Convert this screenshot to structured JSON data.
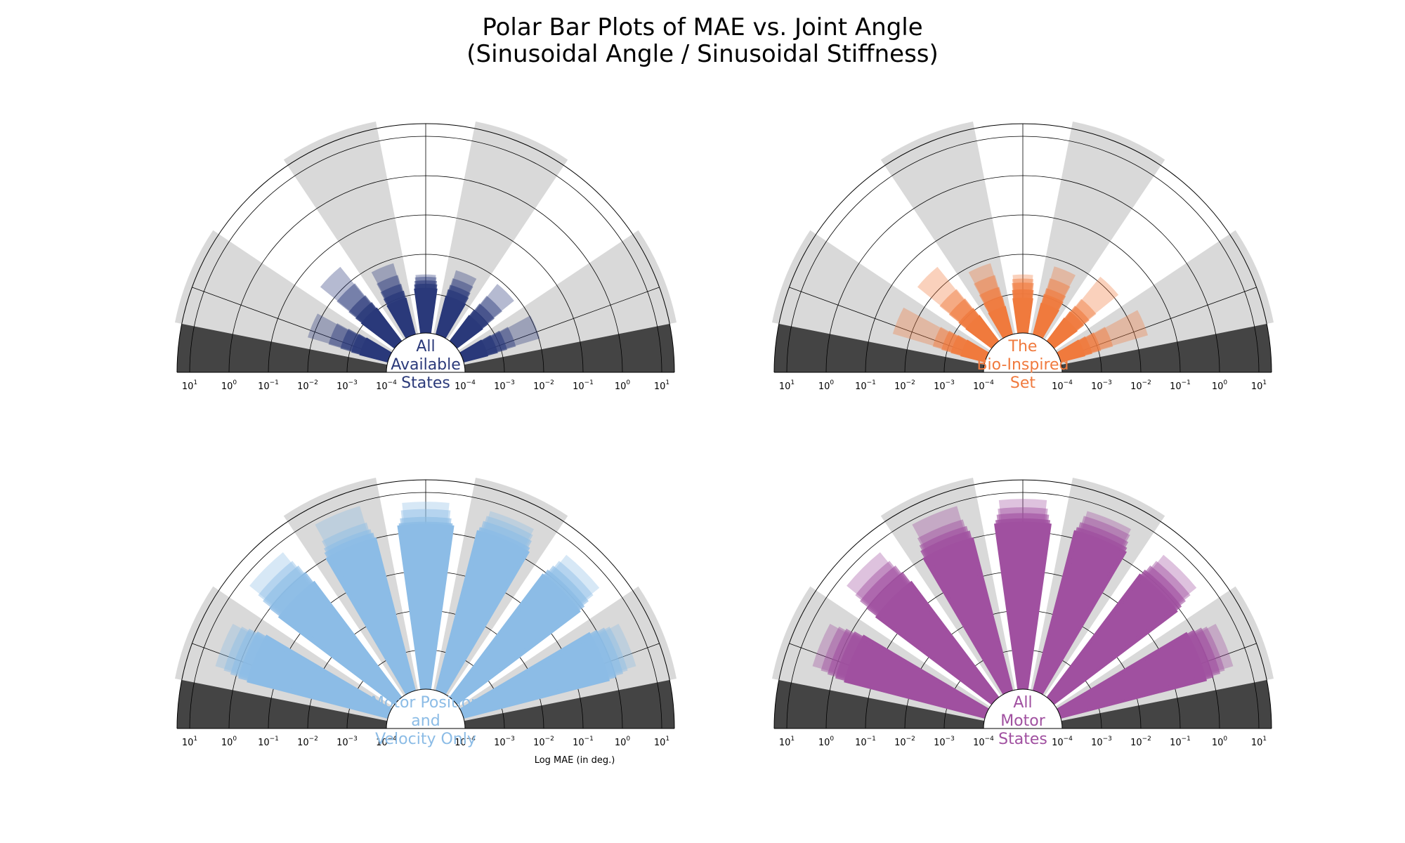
{
  "figure": {
    "title_lines": [
      "Polar Bar Plots of MAE vs. Joint Angle",
      "(Sinusoidal Angle / Sinusoidal Stiffness)"
    ],
    "xlabel": "Log MAE (in deg.)"
  },
  "chart_data": [
    {
      "type": "bar",
      "subtype": "polar-bar-semicircle",
      "name_lines": [
        "All",
        "Available",
        "States"
      ],
      "color": "#2b3a7a",
      "radial_scale": "log",
      "rlim": [
        0.0001,
        10
      ],
      "radial_tick_labels": [
        "10^1",
        "10^0",
        "10^-1",
        "10^-2",
        "10^-3",
        "10^-4",
        "10^-4",
        "10^-3",
        "10^-2",
        "10^-1",
        "10^0",
        "10^1"
      ],
      "joint_angle_bins_deg": [
        -67.5,
        -45,
        -22.5,
        0,
        22.5,
        45,
        67.5
      ],
      "series_alphas": [
        1.0,
        0.8,
        0.6,
        0.45,
        0.35
      ],
      "values": [
        [
          0.0005,
          0.001,
          0.0008,
          0.0012,
          0.0009,
          0.0006,
          0.0004
        ],
        [
          0.0008,
          0.0015,
          0.0012,
          0.0015,
          0.0013,
          0.0009,
          0.0007
        ],
        [
          0.0015,
          0.0025,
          0.0018,
          0.0018,
          0.0017,
          0.0014,
          0.0012
        ],
        [
          0.003,
          0.006,
          0.003,
          0.0022,
          0.0025,
          0.0025,
          0.002
        ],
        [
          0.01,
          0.02,
          0.006,
          0.0025,
          0.004,
          0.006,
          0.008
        ]
      ]
    },
    {
      "type": "bar",
      "subtype": "polar-bar-semicircle",
      "name_lines": [
        "The",
        "Bio-Inspired",
        "Set"
      ],
      "color": "#f07a3e",
      "radial_scale": "log",
      "rlim": [
        0.0001,
        10
      ],
      "radial_tick_labels": [
        "10^1",
        "10^0",
        "10^-1",
        "10^-2",
        "10^-3",
        "10^-4",
        "10^-4",
        "10^-3",
        "10^-2",
        "10^-1",
        "10^0",
        "10^1"
      ],
      "joint_angle_bins_deg": [
        -67.5,
        -45,
        -22.5,
        0,
        22.5,
        45,
        67.5
      ],
      "series_alphas": [
        1.0,
        0.8,
        0.6,
        0.45,
        0.35
      ],
      "values": [
        [
          0.0004,
          0.0006,
          0.0005,
          0.0007,
          0.0006,
          0.0005,
          0.0004
        ],
        [
          0.0007,
          0.001,
          0.0009,
          0.0011,
          0.001,
          0.0008,
          0.0006
        ],
        [
          0.0012,
          0.002,
          0.0015,
          0.0016,
          0.0014,
          0.0012,
          0.001
        ],
        [
          0.002,
          0.004,
          0.003,
          0.002,
          0.0025,
          0.002,
          0.002
        ],
        [
          0.02,
          0.02,
          0.006,
          0.0025,
          0.005,
          0.01,
          0.015
        ]
      ]
    },
    {
      "type": "bar",
      "subtype": "polar-bar-semicircle",
      "name_lines": [
        "Motor Position",
        "and",
        "Velocity Only"
      ],
      "color": "#8cbce6",
      "radial_scale": "log",
      "rlim": [
        0.0001,
        10
      ],
      "radial_tick_labels": [
        "10^1",
        "10^0",
        "10^-1",
        "10^-2",
        "10^-3",
        "10^-4",
        "10^-4",
        "10^-3",
        "10^-2",
        "10^-1",
        "10^0",
        "10^1"
      ],
      "joint_angle_bins_deg": [
        -67.5,
        -45,
        -22.5,
        0,
        22.5,
        45,
        67.5
      ],
      "series_alphas": [
        1.0,
        0.8,
        0.6,
        0.45,
        0.35
      ],
      "values": [
        [
          0.3,
          0.3,
          0.6,
          0.9,
          0.9,
          0.5,
          0.4
        ],
        [
          0.5,
          0.6,
          0.8,
          1.0,
          1.1,
          0.7,
          0.6
        ],
        [
          0.8,
          1.0,
          1.0,
          1.3,
          1.6,
          1.0,
          0.9
        ],
        [
          1.2,
          1.5,
          1.5,
          2.0,
          2.2,
          1.5,
          1.2
        ],
        [
          2.0,
          3.0,
          4.0,
          3.0,
          3.0,
          2.5,
          2.0
        ]
      ]
    },
    {
      "type": "bar",
      "subtype": "polar-bar-semicircle",
      "name_lines": [
        "All",
        "Motor",
        "States"
      ],
      "color": "#a050a0",
      "radial_scale": "log",
      "rlim": [
        0.0001,
        10
      ],
      "radial_tick_labels": [
        "10^1",
        "10^0",
        "10^-1",
        "10^-2",
        "10^-3",
        "10^-4",
        "10^-4",
        "10^-3",
        "10^-2",
        "10^-1",
        "10^0",
        "10^1"
      ],
      "joint_angle_bins_deg": [
        -67.5,
        -45,
        -22.5,
        0,
        22.5,
        45,
        67.5
      ],
      "series_alphas": [
        1.0,
        0.8,
        0.6,
        0.45,
        0.35
      ],
      "values": [
        [
          0.3,
          0.3,
          0.6,
          1.0,
          0.9,
          0.5,
          0.4
        ],
        [
          0.5,
          0.6,
          0.9,
          1.2,
          1.1,
          0.7,
          0.6
        ],
        [
          0.8,
          1.0,
          1.2,
          1.6,
          1.5,
          1.0,
          0.9
        ],
        [
          1.2,
          1.5,
          1.8,
          2.2,
          2.2,
          1.5,
          1.2
        ],
        [
          2.0,
          3.0,
          4.0,
          3.5,
          3.0,
          2.5,
          2.0
        ]
      ]
    }
  ]
}
